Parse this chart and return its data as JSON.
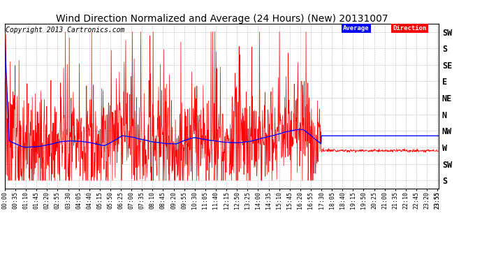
{
  "title": "Wind Direction Normalized and Average (24 Hours) (New) 20131007",
  "copyright": "Copyright 2013 Cartronics.com",
  "bg_color": "#ffffff",
  "plot_bg_color": "#ffffff",
  "grid_color": "#aaaaaa",
  "red_color": "#ff0000",
  "blue_color": "#0000ff",
  "black_color": "#000000",
  "ytick_labels": [
    "SW",
    "S",
    "SE",
    "E",
    "NE",
    "N",
    "NW",
    "W",
    "SW",
    "S"
  ],
  "ytick_values": [
    1,
    2,
    3,
    4,
    5,
    6,
    7,
    8,
    9,
    10
  ],
  "ymin": 0.5,
  "ymax": 10.5,
  "n_points": 1440,
  "title_fontsize": 10,
  "copyright_fontsize": 7,
  "tick_fontsize": 6,
  "ytick_fontsize": 8.5
}
